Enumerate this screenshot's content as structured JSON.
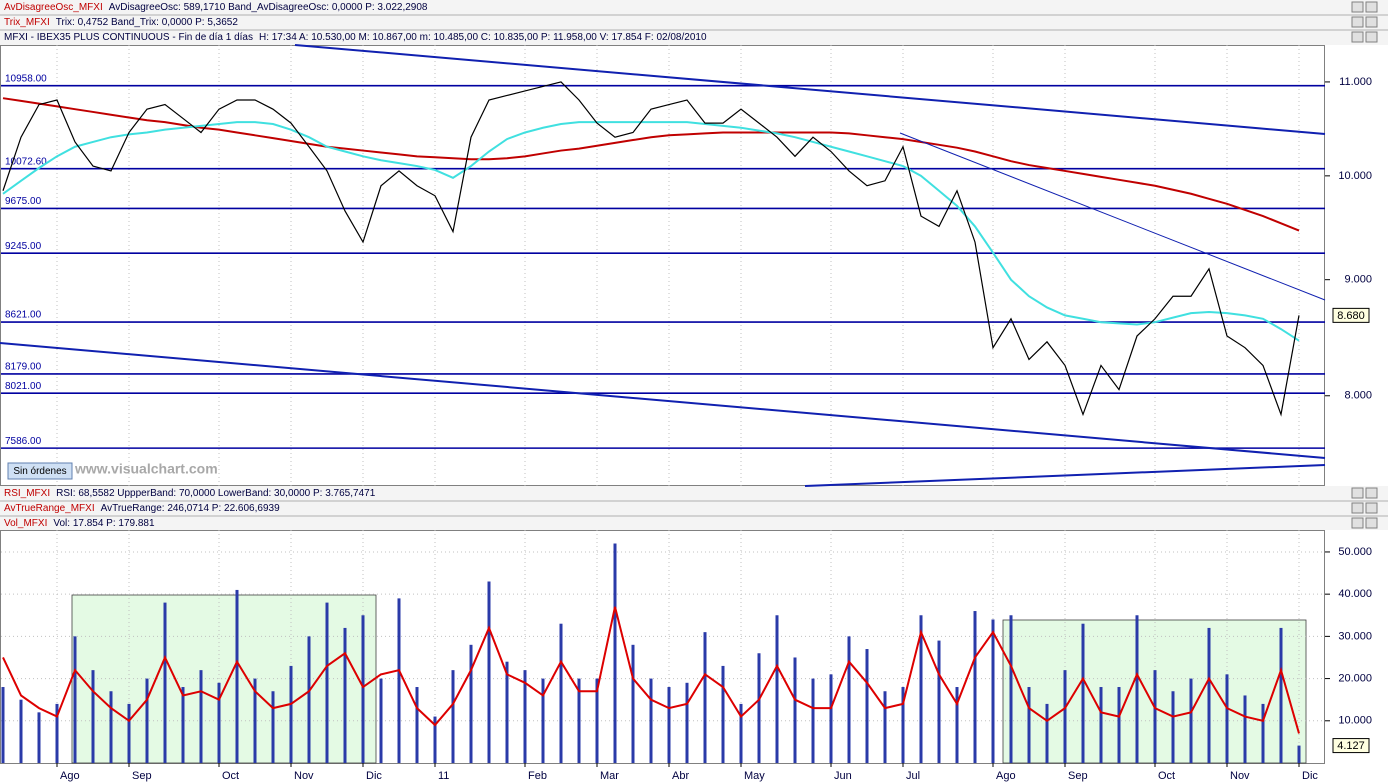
{
  "header_lines": [
    {
      "name": "AvDisagreeOsc_MFXI",
      "info": "AvDisagreeOsc: 589,1710  Band_AvDisagreeOsc: 0,0000  P: 3.022,2908",
      "color": "#c00000"
    },
    {
      "name": "Trix_MFXI",
      "info": "Trix: 0,4752  Band_Trix: 0,0000  P: 5,3652",
      "color": "#c00000"
    },
    {
      "name": "MFXI - IBEX35 PLUS CONTINUOUS - Fin de día 1 días",
      "info": "H: 17:34  A: 10.530,00  M: 10.867,00  m: 10.485,00  C: 10.835,00  P: 11.958,00  V: 17.854  F: 02/08/2010",
      "color": "#000040"
    }
  ],
  "indicator_lines": [
    {
      "name": "RSI_MFXI",
      "info": "RSI: 68,5582  UppperBand: 70,0000  LowerBand: 30,0000  P: 3.765,7471",
      "color": "#c00000"
    },
    {
      "name": "AvTrueRange_MFXI",
      "info": "AvTrueRange: 246,0714  P: 22.606,6939",
      "color": "#c00000"
    },
    {
      "name": "Vol_MFXI",
      "info": "Vol: 17.854  P: 179.881",
      "color": "#c00000"
    }
  ],
  "order_button": "Sin órdenes",
  "watermark": "www.visualchart.com",
  "chart_data": [
    {
      "type": "line",
      "log": true,
      "grid": true,
      "ylim": [
        7300,
        11420
      ],
      "yticks": [
        {
          "value": 11000,
          "label": "11.000"
        },
        {
          "value": 10000,
          "label": "10.000"
        },
        {
          "value": 9000,
          "label": "9.000"
        },
        {
          "value": 8000,
          "label": "8.000"
        }
      ],
      "levels": [
        {
          "value": 10958,
          "label": "10958.00"
        },
        {
          "value": 10072.6,
          "label": "10072.60"
        },
        {
          "value": 9675,
          "label": "9675.00"
        },
        {
          "value": 9245,
          "label": "9245.00"
        },
        {
          "value": 8621,
          "label": "8621.00"
        },
        {
          "value": 8179,
          "label": "8179.00"
        },
        {
          "value": 8021,
          "label": "8021.00"
        },
        {
          "value": 7586,
          "label": "7586.00"
        }
      ],
      "level_color": "#0000a0",
      "last_value": {
        "value": 8680,
        "label": "8.680"
      },
      "series": [
        {
          "color": "#c00000",
          "values": [
            10820,
            10790,
            10760,
            10730,
            10700,
            10670,
            10640,
            10610,
            10580,
            10560,
            10530,
            10500,
            10480,
            10450,
            10420,
            10390,
            10360,
            10330,
            10300,
            10280,
            10260,
            10240,
            10220,
            10200,
            10190,
            10180,
            10170,
            10170,
            10180,
            10200,
            10230,
            10260,
            10280,
            10310,
            10340,
            10370,
            10400,
            10420,
            10430,
            10440,
            10450,
            10450,
            10450,
            10450,
            10450,
            10450,
            10450,
            10440,
            10420,
            10400,
            10380,
            10350,
            10320,
            10290,
            10250,
            10200,
            10150,
            10110,
            10080,
            10050,
            10020,
            9990,
            9960,
            9930,
            9900,
            9860,
            9820,
            9770,
            9720,
            9660,
            9600,
            9530,
            9460
          ]
        },
        {
          "color": "#40e0e0",
          "values": [
            9820,
            9950,
            10080,
            10200,
            10300,
            10350,
            10400,
            10430,
            10450,
            10480,
            10500,
            10520,
            10540,
            10560,
            10560,
            10540,
            10480,
            10400,
            10300,
            10250,
            10200,
            10160,
            10130,
            10100,
            10060,
            9980,
            10100,
            10250,
            10380,
            10450,
            10500,
            10540,
            10560,
            10560,
            10560,
            10560,
            10560,
            10560,
            10560,
            10540,
            10520,
            10500,
            10470,
            10440,
            10400,
            10350,
            10300,
            10250,
            10200,
            10150,
            10100,
            10000,
            9850,
            9700,
            9500,
            9250,
            9000,
            8850,
            8750,
            8680,
            8650,
            8620,
            8610,
            8600,
            8620,
            8660,
            8700,
            8710,
            8700,
            8680,
            8650,
            8560,
            8460
          ]
        },
        {
          "color": "#000000",
          "values": [
            9850,
            10400,
            10750,
            10800,
            10350,
            10100,
            10050,
            10450,
            10700,
            10750,
            10600,
            10450,
            10700,
            10800,
            10800,
            10700,
            10550,
            10300,
            10050,
            9650,
            9350,
            9900,
            10050,
            9900,
            9800,
            9450,
            10400,
            10800,
            10850,
            10900,
            10950,
            11000,
            10800,
            10550,
            10400,
            10450,
            10700,
            10750,
            10800,
            10550,
            10550,
            10700,
            10550,
            10400,
            10200,
            10400,
            10250,
            10050,
            9900,
            9950,
            10300,
            9600,
            9500,
            9850,
            9350,
            8400,
            8650,
            8300,
            8450,
            8250,
            7850,
            8250,
            8050,
            8500,
            8650,
            8850,
            8850,
            9100,
            8500,
            8400,
            8250,
            7850,
            8680
          ]
        }
      ]
    },
    {
      "type": "bar",
      "grid": true,
      "ylim": [
        0,
        55200
      ],
      "yticks": [
        {
          "value": 10000,
          "label": "10.000"
        },
        {
          "value": 20000,
          "label": "20.000"
        },
        {
          "value": 30000,
          "label": "30.000"
        },
        {
          "value": 40000,
          "label": "40.000"
        },
        {
          "value": 50000,
          "label": "50.000"
        }
      ],
      "last_value": {
        "value": 4127,
        "label": "4.127"
      },
      "categories": [
        null,
        null,
        null,
        "Ago",
        null,
        null,
        null,
        "Sep",
        null,
        null,
        null,
        null,
        "Oct",
        null,
        null,
        null,
        "Nov",
        null,
        null,
        null,
        "Dic",
        null,
        null,
        null,
        "11",
        null,
        null,
        null,
        null,
        "Feb",
        null,
        null,
        null,
        "Mar",
        null,
        null,
        null,
        "Abr",
        null,
        null,
        null,
        "May",
        null,
        null,
        null,
        null,
        "Jun",
        null,
        null,
        null,
        "Jul",
        null,
        null,
        null,
        null,
        "Ago",
        null,
        null,
        null,
        "Sep",
        null,
        null,
        null,
        null,
        "Oct",
        null,
        null,
        null,
        "Nov",
        null,
        null,
        null,
        "Dic"
      ],
      "series": [
        {
          "color": "#2a3aa8",
          "values": [
            18000,
            15000,
            12000,
            14000,
            30000,
            22000,
            17000,
            14000,
            20000,
            38000,
            18000,
            22000,
            19000,
            41000,
            20000,
            17000,
            23000,
            30000,
            38000,
            32000,
            35000,
            20000,
            39000,
            18000,
            11000,
            22000,
            28000,
            43000,
            24000,
            22000,
            20000,
            33000,
            20000,
            20000,
            52000,
            28000,
            20000,
            18000,
            19000,
            31000,
            23000,
            14000,
            26000,
            35000,
            25000,
            20000,
            21000,
            30000,
            27000,
            17000,
            18000,
            35000,
            29000,
            18000,
            36000,
            34000,
            35000,
            18000,
            14000,
            22000,
            33000,
            18000,
            18000,
            35000,
            22000,
            17000,
            20000,
            32000,
            21000,
            16000,
            14000,
            32000,
            4127
          ]
        },
        {
          "type": "line",
          "color": "#dd0000",
          "values": [
            25000,
            16000,
            13000,
            11000,
            22000,
            17000,
            13000,
            10000,
            15000,
            25000,
            16000,
            17000,
            15000,
            24000,
            17000,
            13000,
            14000,
            17000,
            23000,
            26000,
            18000,
            21000,
            22000,
            13000,
            9000,
            14000,
            22000,
            32000,
            21000,
            19000,
            16000,
            24000,
            17000,
            17000,
            37000,
            20000,
            15000,
            13000,
            14000,
            21000,
            18000,
            11000,
            15000,
            23000,
            15000,
            13000,
            13000,
            24000,
            19000,
            13000,
            14000,
            31000,
            21000,
            14000,
            25000,
            31000,
            23000,
            13000,
            10000,
            13000,
            20000,
            12000,
            11000,
            21000,
            13000,
            11000,
            12000,
            20000,
            13000,
            11000,
            10000,
            22000,
            7000
          ]
        }
      ]
    }
  ]
}
